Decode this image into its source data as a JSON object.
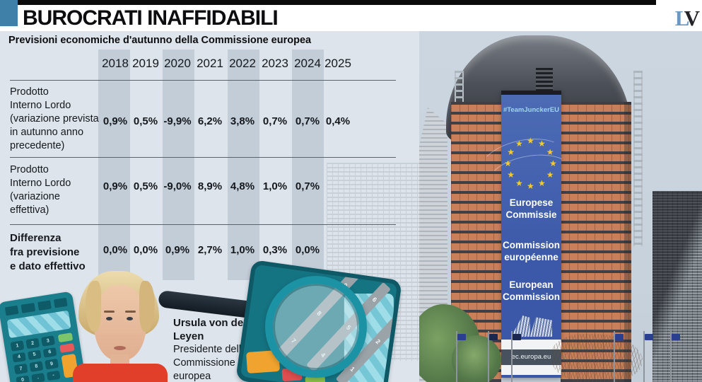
{
  "masthead": {
    "title": "BUROCRATI INAFFIDABILI",
    "logo": {
      "l": "L",
      "v": "V"
    },
    "accent_color": "#3e80a8"
  },
  "subtitle": "Previsioni economiche d'autunno della Commissione europea",
  "chart_data": {
    "type": "table",
    "title": "Previsioni economiche d'autunno della Commissione europea",
    "columns": [
      "2018",
      "2019",
      "2020",
      "2021",
      "2022",
      "2023",
      "2024",
      "2025"
    ],
    "rows": [
      {
        "label": "Prodotto Interno Lordo (variazione prevista in autunno anno precedente)",
        "values_pct": [
          0.9,
          0.5,
          -9.9,
          6.2,
          3.8,
          0.7,
          0.7,
          0.4
        ]
      },
      {
        "label": "Prodotto Interno Lordo (variazione effettiva)",
        "values_pct": [
          0.9,
          0.5,
          -9.0,
          8.9,
          4.8,
          1.0,
          0.7,
          null
        ]
      },
      {
        "label": "Differenza fra previsione e dato effettivo",
        "values_pct": [
          0.0,
          0.0,
          0.9,
          2.7,
          1.0,
          0.3,
          0.0,
          null
        ]
      }
    ],
    "shaded_columns": [
      "2018",
      "2020",
      "2022",
      "2024"
    ]
  },
  "table": {
    "years": [
      "2018",
      "2019",
      "2020",
      "2021",
      "2022",
      "2023",
      "2024",
      "2025"
    ],
    "rows": [
      {
        "bold": false,
        "label_lines": [
          "Prodotto",
          "Interno Lordo",
          "(variazione prevista",
          "in autunno anno",
          "precedente)"
        ],
        "values": [
          "0,9%",
          "0,5%",
          "-9,9%",
          "6,2%",
          "3,8%",
          "0,7%",
          "0,7%",
          "0,4%"
        ]
      },
      {
        "bold": false,
        "label_lines": [
          "Prodotto",
          "Interno Lordo",
          "(variazione",
          "effettiva)"
        ],
        "values": [
          "0,9%",
          "0,5%",
          "-9,0%",
          "8,9%",
          "4,8%",
          "1,0%",
          "0,7%",
          ""
        ]
      },
      {
        "bold": true,
        "label_lines": [
          "Differenza",
          "fra previsione",
          "e dato effettivo"
        ],
        "values": [
          "0,0%",
          "0,0%",
          "0,9%",
          "2,7%",
          "1,0%",
          "0,3%",
          "0,0%",
          ""
        ]
      }
    ]
  },
  "caption": {
    "name": "Ursula von der Leyen",
    "role": "Presidente della Commissione europea"
  },
  "photo": {
    "hashtag": "#TeamJunckerEU",
    "banner_lines": [
      "Europese Commissie",
      "Commission européenne",
      "European Commission"
    ],
    "footer_url": "ec.europa.eu",
    "star_count": 12
  },
  "illustration": {
    "keypad": [
      "1",
      "2",
      "3",
      "4",
      "5",
      "6",
      "7",
      "8",
      "9",
      "0",
      ".",
      "-"
    ],
    "lens_columns": [
      [
        "7",
        "8",
        "0"
      ],
      [
        "4",
        "5",
        "6"
      ],
      [
        "1",
        "2",
        "3"
      ]
    ]
  },
  "colors": {
    "panel_bg": "#dde4ec",
    "column_band": "#c3cdd8",
    "accent_blue": "#3e80a8",
    "banner_blue": "#3c59a9",
    "star_yellow": "#f3c83b",
    "facade_orange": "#c9805a",
    "calculator_teal": "#1b7e8c",
    "jacket_red": "#e23f2b"
  }
}
